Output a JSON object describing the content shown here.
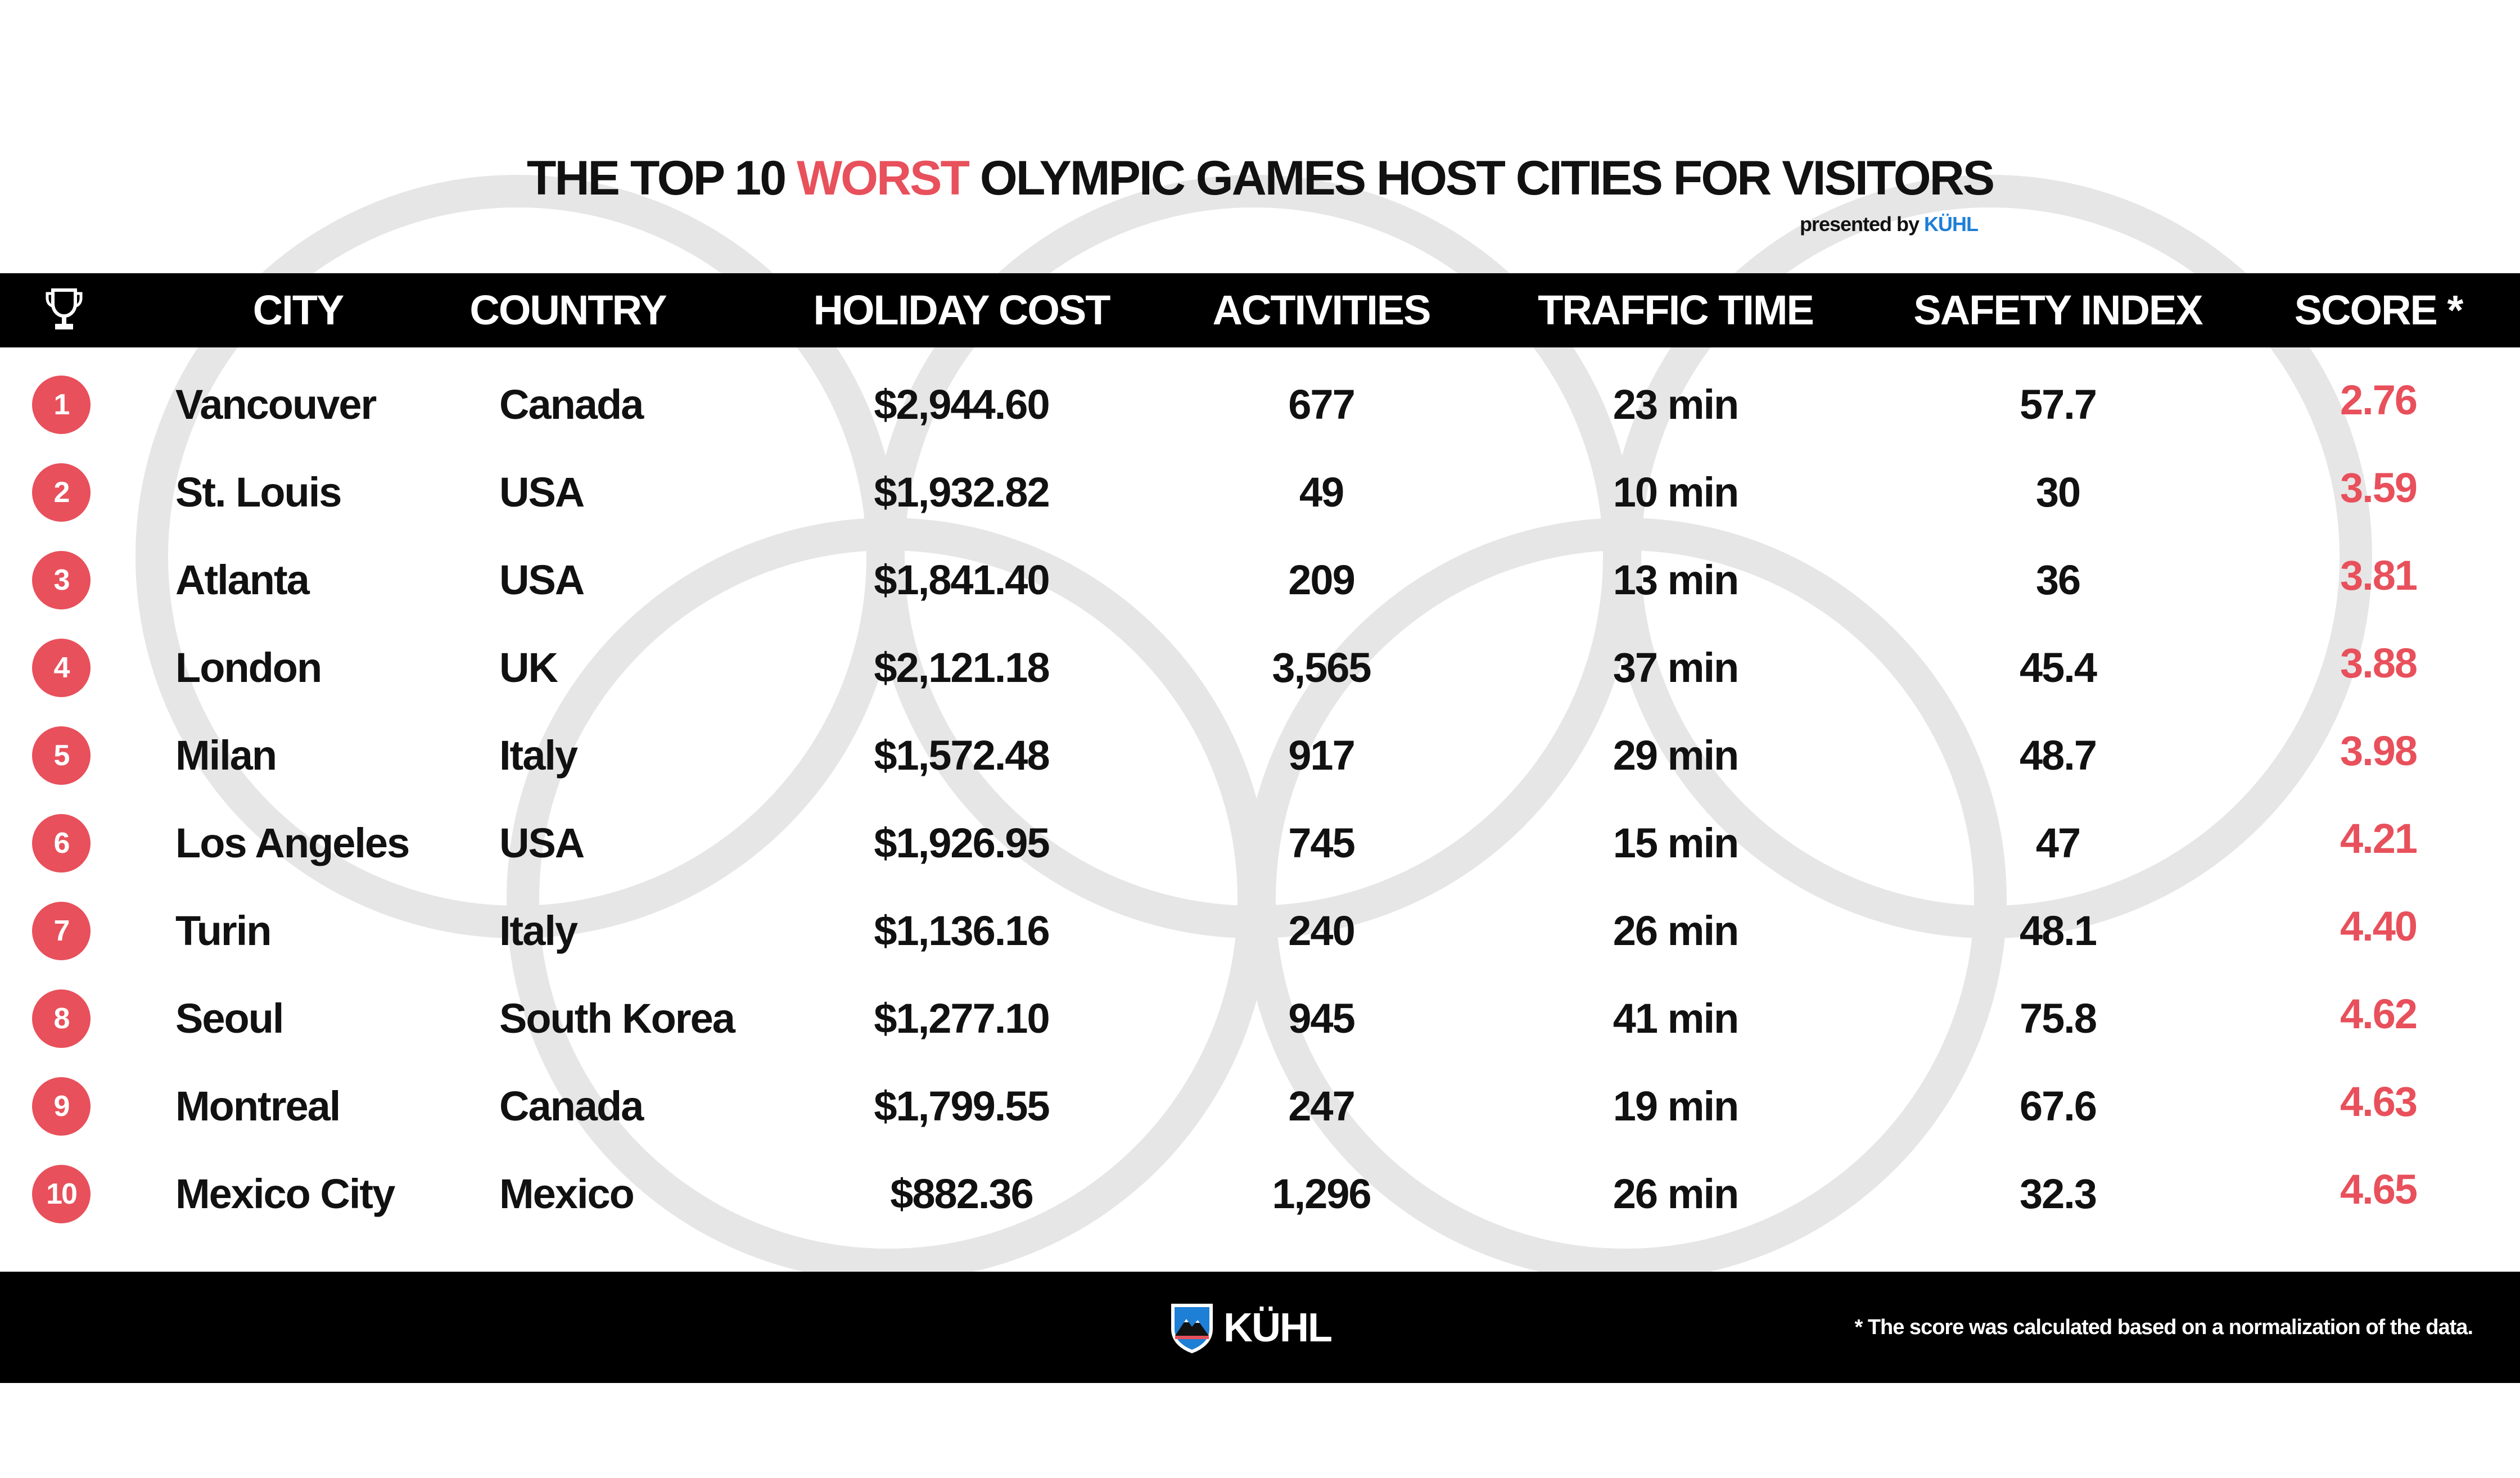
{
  "title": {
    "prefix": "THE TOP 10 ",
    "highlight": "WORST",
    "suffix": " OLYMPIC GAMES HOST CITIES FOR VISITORS"
  },
  "presented_by": {
    "prefix": "presented by ",
    "brand": "KÜHL"
  },
  "header_icon": "trophy-icon",
  "columns": [
    "CITY",
    "COUNTRY",
    "HOLIDAY COST",
    "ACTIVITIES",
    "TRAFFIC TIME",
    "SAFETY INDEX",
    "SCORE *"
  ],
  "rows": [
    {
      "rank": "1",
      "city": "Vancouver",
      "country": "Canada",
      "cost": "$2,944.60",
      "activities": "677",
      "traffic": "23 min",
      "safety": "57.7",
      "score": "2.76"
    },
    {
      "rank": "2",
      "city": "St. Louis",
      "country": "USA",
      "cost": "$1,932.82",
      "activities": "49",
      "traffic": "10 min",
      "safety": "30",
      "score": "3.59"
    },
    {
      "rank": "3",
      "city": "Atlanta",
      "country": "USA",
      "cost": "$1,841.40",
      "activities": "209",
      "traffic": "13 min",
      "safety": "36",
      "score": "3.81"
    },
    {
      "rank": "4",
      "city": "London",
      "country": "UK",
      "cost": "$2,121.18",
      "activities": "3,565",
      "traffic": "37 min",
      "safety": "45.4",
      "score": "3.88"
    },
    {
      "rank": "5",
      "city": "Milan",
      "country": "Italy",
      "cost": "$1,572.48",
      "activities": "917",
      "traffic": "29 min",
      "safety": "48.7",
      "score": "3.98"
    },
    {
      "rank": "6",
      "city": "Los Angeles",
      "country": "USA",
      "cost": "$1,926.95",
      "activities": "745",
      "traffic": "15 min",
      "safety": "47",
      "score": "4.21"
    },
    {
      "rank": "7",
      "city": "Turin",
      "country": "Italy",
      "cost": "$1,136.16",
      "activities": "240",
      "traffic": "26 min",
      "safety": "48.1",
      "score": "4.40"
    },
    {
      "rank": "8",
      "city": "Seoul",
      "country": "South Korea",
      "cost": "$1,277.10",
      "activities": "945",
      "traffic": "41 min",
      "safety": "75.8",
      "score": "4.62"
    },
    {
      "rank": "9",
      "city": "Montreal",
      "country": "Canada",
      "cost": "$1,799.55",
      "activities": "247",
      "traffic": "19 min",
      "safety": "67.6",
      "score": "4.63"
    },
    {
      "rank": "10",
      "city": "Mexico City",
      "country": "Mexico",
      "cost": "$882.36",
      "activities": "1,296",
      "traffic": "26 min",
      "safety": "32.3",
      "score": "4.65"
    }
  ],
  "footer": {
    "logo_text": "KÜHL",
    "logo_icon": "mountain-shield-icon",
    "footnote": "* The score was calculated based on a normalization of the data."
  },
  "colors": {
    "accent": "#e8505b",
    "brand_blue": "#1d7fd6",
    "bars": "#000000",
    "rings": "#e6e6e6"
  }
}
